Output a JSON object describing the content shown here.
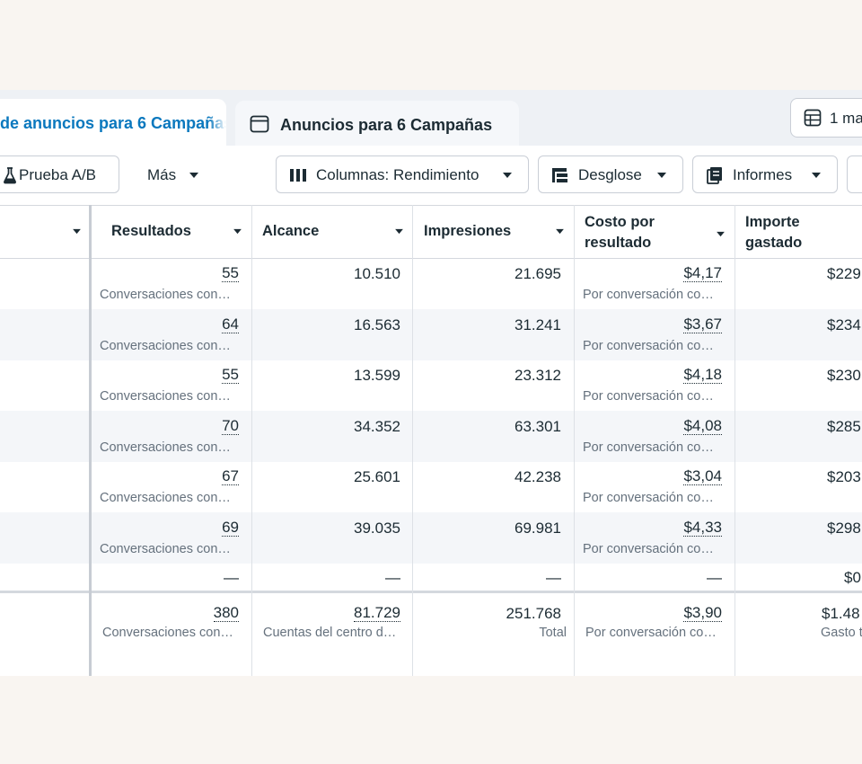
{
  "tabs": {
    "active_label": "de anuncios para 6 Campañas",
    "inactive_label": "Anuncios para 6 Campañas"
  },
  "view_button": {
    "label": "1 ma"
  },
  "toolbar": {
    "ab_test_label": "Prueba A/B",
    "more_label": "Más",
    "columns_label": "Columnas: Rendimiento",
    "breakdown_label": "Desglose",
    "reports_label": "Informes"
  },
  "columns": {
    "results": "Resultados",
    "reach": "Alcance",
    "impressions": "Impresiones",
    "cost_line1": "Costo por",
    "cost_line2": "resultado",
    "spent_line1": "Importe",
    "spent_line2": "gastado"
  },
  "rows": [
    {
      "results": "55",
      "results_sub": "Conversaciones con…",
      "reach": "10.510",
      "impressions": "21.695",
      "cost": "$4,17",
      "cost_sub": "Por conversación co…",
      "spent": "$229"
    },
    {
      "results": "64",
      "results_sub": "Conversaciones con…",
      "reach": "16.563",
      "impressions": "31.241",
      "cost": "$3,67",
      "cost_sub": "Por conversación co…",
      "spent": "$234"
    },
    {
      "results": "55",
      "results_sub": "Conversaciones con…",
      "reach": "13.599",
      "impressions": "23.312",
      "cost": "$4,18",
      "cost_sub": "Por conversación co…",
      "spent": "$230"
    },
    {
      "results": "70",
      "results_sub": "Conversaciones con…",
      "reach": "34.352",
      "impressions": "63.301",
      "cost": "$4,08",
      "cost_sub": "Por conversación co…",
      "spent": "$285"
    },
    {
      "results": "67",
      "results_sub": "Conversaciones con…",
      "reach": "25.601",
      "impressions": "42.238",
      "cost": "$3,04",
      "cost_sub": "Por conversación co…",
      "spent": "$203"
    },
    {
      "results": "69",
      "results_sub": "Conversaciones con…",
      "reach": "39.035",
      "impressions": "69.981",
      "cost": "$4,33",
      "cost_sub": "Por conversación co…",
      "spent": "$298"
    }
  ],
  "empty_row": {
    "results": "—",
    "reach": "—",
    "impressions": "—",
    "cost": "—",
    "spent": "$0"
  },
  "totals": {
    "results": "380",
    "results_sub": "Conversaciones con…",
    "reach": "81.729",
    "reach_sub": "Cuentas del centro d…",
    "impressions": "251.768",
    "impressions_sub": "Total",
    "cost": "$3,90",
    "cost_sub": "Por conversación co…",
    "spent": "$1.48",
    "spent_sub": "Gasto t"
  },
  "colors": {
    "accent": "#0a78be",
    "alt_row": "#f4f6f9",
    "muted_text": "#65717d"
  },
  "icons": [
    "window-icon",
    "table-icon",
    "flask-icon",
    "columns-icon",
    "breakdown-icon",
    "reports-icon",
    "chevron-down-icon"
  ]
}
